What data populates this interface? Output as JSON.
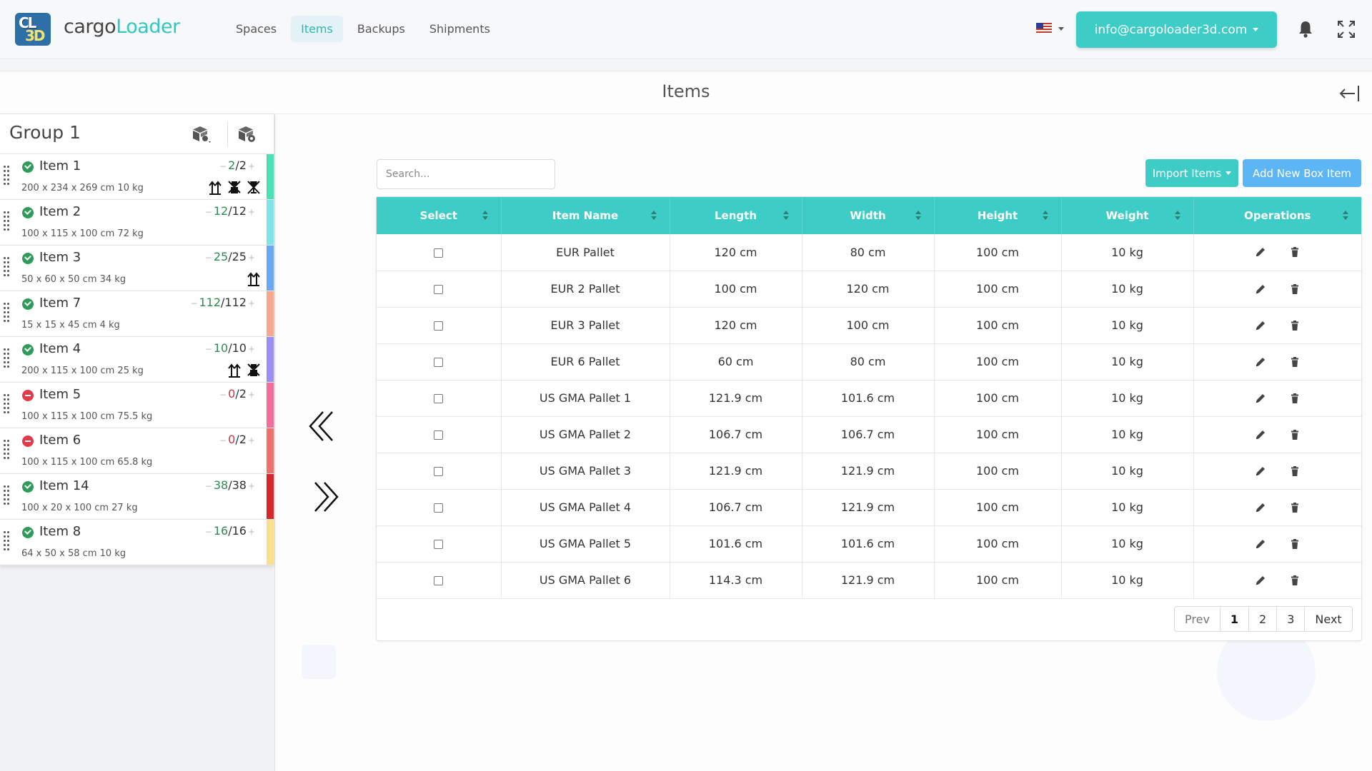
{
  "app": {
    "logo_top": "CL",
    "logo_bottom": "3D",
    "brand_part1": "cargo",
    "brand_part2": "Loader",
    "account_email": "info@cargoloader3d.com",
    "nav": [
      {
        "label": "Spaces",
        "active": false
      },
      {
        "label": "Items",
        "active": true
      },
      {
        "label": "Backups",
        "active": false
      },
      {
        "label": "Shipments",
        "active": false
      }
    ]
  },
  "panel": {
    "title": "Items"
  },
  "group": {
    "title": "Group 1",
    "items": [
      {
        "name": "Item 1",
        "dims": "200 x 234 x 269 cm 10 kg",
        "loaded": "2",
        "total": "2",
        "status": "ok",
        "color": "#4ee0b5",
        "icons": [
          "this-side-up-icon",
          "no-stack-icon",
          "fragile-icon"
        ]
      },
      {
        "name": "Item 2",
        "dims": "100 x 115 x 100 cm 72 kg",
        "loaded": "12",
        "total": "12",
        "status": "ok",
        "color": "#7fe3ea",
        "icons": []
      },
      {
        "name": "Item 3",
        "dims": "50 x 60 x 50 cm 34 kg",
        "loaded": "25",
        "total": "25",
        "status": "ok",
        "color": "#6aa8f2",
        "icons": [
          "this-side-up-icon"
        ]
      },
      {
        "name": "Item 7",
        "dims": "15 x 15 x 45 cm 4 kg",
        "loaded": "112",
        "total": "112",
        "status": "ok",
        "color": "#f6a98e",
        "icons": []
      },
      {
        "name": "Item 4",
        "dims": "200 x 115 x 100 cm 25 kg",
        "loaded": "10",
        "total": "10",
        "status": "ok",
        "color": "#9b8ff2",
        "icons": [
          "this-side-up-icon",
          "no-stack-icon"
        ]
      },
      {
        "name": "Item 5",
        "dims": "100 x 115 x 100 cm 75.5 kg",
        "loaded": "0",
        "total": "2",
        "status": "err",
        "color": "#f36d9b",
        "icons": []
      },
      {
        "name": "Item 6",
        "dims": "100 x 115 x 100 cm 65.8 kg",
        "loaded": "0",
        "total": "2",
        "status": "err",
        "color": "#f0706b",
        "icons": []
      },
      {
        "name": "Item 14",
        "dims": "100 x 20 x 100 cm 27 kg",
        "loaded": "38",
        "total": "38",
        "status": "ok",
        "color": "#d9262a",
        "icons": []
      },
      {
        "name": "Item 8",
        "dims": "64 x 50 x 58 cm 10 kg",
        "loaded": "16",
        "total": "16",
        "status": "ok",
        "color": "#f7e08e",
        "icons": []
      }
    ]
  },
  "toolbar": {
    "search_placeholder": "Search...",
    "import_label": "Import Items",
    "add_label": "Add New Box Item"
  },
  "table": {
    "columns": [
      "Select",
      "Item Name",
      "Length",
      "Width",
      "Height",
      "Weight",
      "Operations"
    ],
    "rows": [
      {
        "name": "EUR Pallet",
        "length": "120 cm",
        "width": "80 cm",
        "height": "100 cm",
        "weight": "10 kg"
      },
      {
        "name": "EUR 2 Pallet",
        "length": "100 cm",
        "width": "120 cm",
        "height": "100 cm",
        "weight": "10 kg"
      },
      {
        "name": "EUR 3 Pallet",
        "length": "120 cm",
        "width": "100 cm",
        "height": "100 cm",
        "weight": "10 kg"
      },
      {
        "name": "EUR 6 Pallet",
        "length": "60 cm",
        "width": "80 cm",
        "height": "100 cm",
        "weight": "10 kg"
      },
      {
        "name": "US GMA Pallet 1",
        "length": "121.9 cm",
        "width": "101.6 cm",
        "height": "100 cm",
        "weight": "10 kg"
      },
      {
        "name": "US GMA Pallet 2",
        "length": "106.7 cm",
        "width": "106.7 cm",
        "height": "100 cm",
        "weight": "10 kg"
      },
      {
        "name": "US GMA Pallet 3",
        "length": "121.9 cm",
        "width": "121.9 cm",
        "height": "100 cm",
        "weight": "10 kg"
      },
      {
        "name": "US GMA Pallet 4",
        "length": "106.7 cm",
        "width": "121.9 cm",
        "height": "100 cm",
        "weight": "10 kg"
      },
      {
        "name": "US GMA Pallet 5",
        "length": "101.6 cm",
        "width": "101.6 cm",
        "height": "100 cm",
        "weight": "10 kg"
      },
      {
        "name": "US GMA Pallet 6",
        "length": "114.3 cm",
        "width": "121.9 cm",
        "height": "100 cm",
        "weight": "10 kg"
      }
    ]
  },
  "pagination": {
    "prev": "Prev",
    "pages": [
      "1",
      "2",
      "3"
    ],
    "active": "1",
    "next": "Next"
  }
}
